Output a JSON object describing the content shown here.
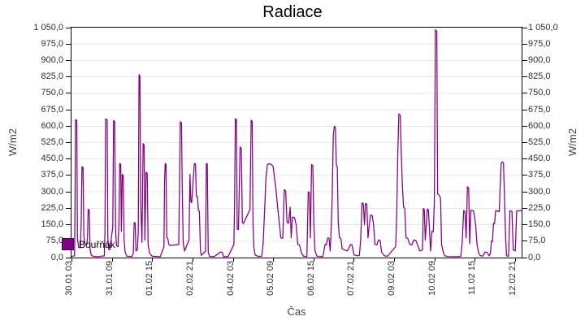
{
  "chart": {
    "title": "Radiace",
    "x_axis_title": "Čas",
    "y_axis_title": "W/m2",
    "series_name": "Bouřňák"
  },
  "colors": {
    "line": "#800080",
    "grid": "#e7e7e7",
    "axis": "#000000",
    "tick_text": "#2e2e2e",
    "axis_title_text": "#444444",
    "background": "#ffffff"
  },
  "chart_data": {
    "type": "line",
    "title": "Radiace",
    "xlabel": "Čas",
    "ylabel": "W/m2",
    "legend": [
      "Bouřňák"
    ],
    "legend_position": "inside-bottom-left",
    "line_color": "#800080",
    "grid": "horizontal-only",
    "ylim": [
      0,
      1050
    ],
    "y_tick_step": 75,
    "y_tick_labels": [
      "0,0",
      "75,0",
      "150,0",
      "225,0",
      "300,0",
      "375,0",
      "450,0",
      "525,0",
      "600,0",
      "675,0",
      "750,0",
      "825,0",
      "900,0",
      "975,0",
      "1 050,0"
    ],
    "x_tick_labels": [
      "30.01 03",
      "31.01 09",
      "01.02 15",
      "02.02 21",
      "04.02 03",
      "05.02 09",
      "06.02 15",
      "07.02 21",
      "09.02 03",
      "10.02 09",
      "11.02 15",
      "12.02 21"
    ],
    "x_tick_interval_hours": 30,
    "x_domain_hours": [
      0,
      334.8
    ],
    "x_unit": "hours after first tick (30.01 03:00)",
    "y_unit": "W/m2",
    "points": [
      [
        0,
        5
      ],
      [
        2.3,
        8
      ],
      [
        2.6,
        240
      ],
      [
        3.0,
        630
      ],
      [
        3.9,
        626
      ],
      [
        4.4,
        90
      ],
      [
        5.3,
        46
      ],
      [
        6.6,
        45
      ],
      [
        7.2,
        150
      ],
      [
        7.8,
        415
      ],
      [
        8.6,
        411
      ],
      [
        9.2,
        100
      ],
      [
        10.0,
        62
      ],
      [
        11.4,
        60
      ],
      [
        11.9,
        90
      ],
      [
        12.4,
        220
      ],
      [
        13.2,
        217
      ],
      [
        13.8,
        40
      ],
      [
        14.6,
        12
      ],
      [
        16.0,
        6
      ],
      [
        20.0,
        4
      ],
      [
        24.4,
        8
      ],
      [
        24.9,
        120
      ],
      [
        25.4,
        633
      ],
      [
        26.5,
        629
      ],
      [
        27.0,
        90
      ],
      [
        27.6,
        38
      ],
      [
        28.5,
        35
      ],
      [
        30.7,
        140
      ],
      [
        31.3,
        626
      ],
      [
        32.1,
        622
      ],
      [
        32.8,
        120
      ],
      [
        33.5,
        55
      ],
      [
        34.6,
        50
      ],
      [
        35.3,
        160
      ],
      [
        35.9,
        430
      ],
      [
        36.6,
        425
      ],
      [
        37.1,
        120
      ],
      [
        37.8,
        380
      ],
      [
        38.5,
        375
      ],
      [
        39.1,
        80
      ],
      [
        39.9,
        25
      ],
      [
        41.2,
        6
      ],
      [
        45.0,
        5
      ],
      [
        46.0,
        20
      ],
      [
        46.6,
        160
      ],
      [
        47.4,
        157
      ],
      [
        47.9,
        30
      ],
      [
        49.0,
        35
      ],
      [
        49.7,
        120
      ],
      [
        50.2,
        835
      ],
      [
        50.9,
        830
      ],
      [
        51.4,
        260
      ],
      [
        52.4,
        70
      ],
      [
        53.3,
        520
      ],
      [
        54.0,
        514
      ],
      [
        54.6,
        80
      ],
      [
        55.5,
        390
      ],
      [
        56.3,
        385
      ],
      [
        57.0,
        60
      ],
      [
        58.1,
        20
      ],
      [
        60.0,
        6
      ],
      [
        66.0,
        4
      ],
      [
        68.8,
        50
      ],
      [
        69.2,
        345
      ],
      [
        69.7,
        430
      ],
      [
        70.3,
        425
      ],
      [
        70.9,
        90
      ],
      [
        71.6,
        88
      ],
      [
        72.4,
        60
      ],
      [
        73.6,
        55
      ],
      [
        79.8,
        60
      ],
      [
        80.3,
        325
      ],
      [
        80.9,
        620
      ],
      [
        81.8,
        615
      ],
      [
        82.4,
        320
      ],
      [
        83.1,
        65
      ],
      [
        84.1,
        30
      ],
      [
        87.4,
        80
      ],
      [
        88.1,
        380
      ],
      [
        88.8,
        255
      ],
      [
        89.4,
        250
      ],
      [
        91.4,
        430
      ],
      [
        92.2,
        427
      ],
      [
        92.9,
        280
      ],
      [
        93.7,
        277
      ],
      [
        94.4,
        215
      ],
      [
        95.1,
        212
      ],
      [
        95.9,
        35
      ],
      [
        96.6,
        10
      ],
      [
        99.7,
        30
      ],
      [
        100.3,
        430
      ],
      [
        101.0,
        427
      ],
      [
        101.7,
        25
      ],
      [
        102.6,
        6
      ],
      [
        106.0,
        4
      ],
      [
        110.9,
        25
      ],
      [
        112.1,
        24
      ],
      [
        113.0,
        5
      ],
      [
        116.5,
        5
      ],
      [
        120.8,
        60
      ],
      [
        121.3,
        250
      ],
      [
        121.9,
        634
      ],
      [
        122.7,
        630
      ],
      [
        123.3,
        130
      ],
      [
        124.2,
        128
      ],
      [
        125.4,
        505
      ],
      [
        126.3,
        500
      ],
      [
        127.1,
        160
      ],
      [
        127.9,
        155
      ],
      [
        132.8,
        220
      ],
      [
        133.6,
        627
      ],
      [
        134.4,
        622
      ],
      [
        135.0,
        160
      ],
      [
        135.7,
        45
      ],
      [
        136.6,
        12
      ],
      [
        139.0,
        5
      ],
      [
        141.5,
        6
      ],
      [
        142.5,
        60
      ],
      [
        143.5,
        200
      ],
      [
        144.6,
        360
      ],
      [
        145.7,
        425
      ],
      [
        147.1,
        429
      ],
      [
        148.7,
        424
      ],
      [
        149.9,
        418
      ],
      [
        151.1,
        360
      ],
      [
        152.1,
        310
      ],
      [
        153.3,
        230
      ],
      [
        154.5,
        162
      ],
      [
        155.7,
        90
      ],
      [
        157.1,
        88
      ],
      [
        158.3,
        310
      ],
      [
        159.3,
        305
      ],
      [
        160.3,
        160
      ],
      [
        161.5,
        157
      ],
      [
        162.6,
        230
      ],
      [
        163.4,
        90
      ],
      [
        164.3,
        185
      ],
      [
        165.9,
        182
      ],
      [
        167.1,
        150
      ],
      [
        168.3,
        60
      ],
      [
        169.6,
        58
      ],
      [
        171.1,
        20
      ],
      [
        172.6,
        6
      ],
      [
        175.1,
        5
      ],
      [
        176.1,
        300
      ],
      [
        177.0,
        295
      ],
      [
        177.7,
        90
      ],
      [
        178.6,
        425
      ],
      [
        179.5,
        420
      ],
      [
        180.3,
        150
      ],
      [
        181.1,
        30
      ],
      [
        182.6,
        6
      ],
      [
        187.0,
        5
      ],
      [
        188.6,
        60
      ],
      [
        189.6,
        58
      ],
      [
        190.6,
        90
      ],
      [
        191.6,
        88
      ],
      [
        192.4,
        30
      ],
      [
        193.1,
        120
      ],
      [
        193.9,
        280
      ],
      [
        194.7,
        560
      ],
      [
        195.5,
        600
      ],
      [
        196.3,
        594
      ],
      [
        197.0,
        420
      ],
      [
        197.7,
        415
      ],
      [
        198.4,
        160
      ],
      [
        199.3,
        90
      ],
      [
        200.4,
        88
      ],
      [
        201.3,
        40
      ],
      [
        203.1,
        35
      ],
      [
        205.1,
        30
      ],
      [
        207.6,
        60
      ],
      [
        208.6,
        58
      ],
      [
        210.1,
        12
      ],
      [
        213.1,
        8
      ],
      [
        214.1,
        10
      ],
      [
        215.1,
        80
      ],
      [
        216.1,
        250
      ],
      [
        217.1,
        245
      ],
      [
        217.9,
        150
      ],
      [
        218.7,
        248
      ],
      [
        219.7,
        243
      ],
      [
        220.5,
        90
      ],
      [
        221.5,
        150
      ],
      [
        222.5,
        195
      ],
      [
        223.7,
        190
      ],
      [
        224.7,
        150
      ],
      [
        225.7,
        60
      ],
      [
        227.1,
        58
      ],
      [
        228.3,
        80
      ],
      [
        229.5,
        78
      ],
      [
        230.7,
        25
      ],
      [
        232.6,
        8
      ],
      [
        235.1,
        6
      ],
      [
        241.1,
        50
      ],
      [
        241.9,
        200
      ],
      [
        242.7,
        480
      ],
      [
        243.5,
        656
      ],
      [
        244.5,
        650
      ],
      [
        245.3,
        475
      ],
      [
        246.1,
        330
      ],
      [
        247.0,
        230
      ],
      [
        247.9,
        225
      ],
      [
        248.8,
        90
      ],
      [
        250.1,
        88
      ],
      [
        251.6,
        60
      ],
      [
        253.1,
        58
      ],
      [
        254.6,
        80
      ],
      [
        256.1,
        78
      ],
      [
        257.6,
        55
      ],
      [
        259.1,
        30
      ],
      [
        261.1,
        35
      ],
      [
        261.7,
        224
      ],
      [
        262.4,
        220
      ],
      [
        263.1,
        80
      ],
      [
        264.7,
        222
      ],
      [
        265.5,
        218
      ],
      [
        266.3,
        120
      ],
      [
        267.1,
        30
      ],
      [
        268.1,
        120
      ],
      [
        269.1,
        118
      ],
      [
        269.9,
        260
      ],
      [
        270.7,
        1040
      ],
      [
        271.7,
        1034
      ],
      [
        272.3,
        290
      ],
      [
        273.5,
        285
      ],
      [
        274.5,
        270
      ],
      [
        275.3,
        60
      ],
      [
        276.5,
        25
      ],
      [
        277.7,
        8
      ],
      [
        280.1,
        5
      ],
      [
        288.1,
        4
      ],
      [
        289.6,
        6
      ],
      [
        290.7,
        80
      ],
      [
        291.7,
        215
      ],
      [
        292.7,
        210
      ],
      [
        293.5,
        90
      ],
      [
        294.5,
        323
      ],
      [
        295.4,
        318
      ],
      [
        296.2,
        63
      ],
      [
        297.1,
        216
      ],
      [
        299.1,
        213
      ],
      [
        300.6,
        150
      ],
      [
        301.6,
        60
      ],
      [
        302.9,
        20
      ],
      [
        304.1,
        8
      ],
      [
        306.1,
        7
      ],
      [
        307.6,
        25
      ],
      [
        309.1,
        23
      ],
      [
        310.6,
        8
      ],
      [
        311.6,
        20
      ],
      [
        312.3,
        75
      ],
      [
        313.1,
        73
      ],
      [
        313.9,
        157
      ],
      [
        314.7,
        155
      ],
      [
        315.5,
        215
      ],
      [
        317.1,
        212
      ],
      [
        318.1,
        210
      ],
      [
        319.6,
        430
      ],
      [
        320.4,
        437
      ],
      [
        321.3,
        432
      ],
      [
        322.1,
        260
      ],
      [
        322.9,
        90
      ],
      [
        323.6,
        8
      ],
      [
        325.1,
        6
      ],
      [
        326.1,
        214
      ],
      [
        327.6,
        210
      ],
      [
        328.6,
        35
      ],
      [
        330.1,
        30
      ],
      [
        331.1,
        213
      ],
      [
        334.7,
        214
      ]
    ]
  }
}
